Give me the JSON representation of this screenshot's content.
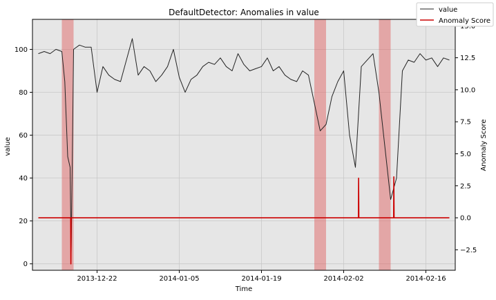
{
  "chart_data": {
    "type": "line",
    "title": "DefaultDetector: Anomalies in value",
    "xlabel": "Time",
    "ylabel": "value",
    "y2label": "Anomaly Score",
    "x_range": [
      "2013-12-11",
      "2014-02-21"
    ],
    "x_ticks": [
      "2013-12-22",
      "2014-01-05",
      "2014-01-19",
      "2014-02-02",
      "2014-02-16"
    ],
    "ylim": [
      -3,
      114
    ],
    "y_ticks": [
      0,
      20,
      40,
      60,
      80,
      100
    ],
    "y2lim": [
      -4.1,
      15.5
    ],
    "y2_ticks": [
      -2.5,
      0.0,
      2.5,
      5.0,
      7.5,
      10.0,
      12.5,
      15.0
    ],
    "y2_tick_labels": [
      "−2.5",
      "0.0",
      "2.5",
      "5.0",
      "7.5",
      "10.0",
      "12.5",
      "15.0"
    ],
    "grid": true,
    "legend_position": "top-right",
    "legend": [
      {
        "label": "value",
        "color": "#222222"
      },
      {
        "label": "Anomaly Score",
        "color": "#cc0000"
      }
    ],
    "anomaly_windows": [
      {
        "start": "2013-12-16",
        "end": "2013-12-18"
      },
      {
        "start": "2014-01-28",
        "end": "2014-01-30"
      },
      {
        "start": "2014-02-08",
        "end": "2014-02-10"
      }
    ],
    "series": [
      {
        "name": "value",
        "axis": "left",
        "color": "#222222",
        "points": [
          [
            "2013-12-12",
            98
          ],
          [
            "2013-12-13",
            99
          ],
          [
            "2013-12-14",
            98
          ],
          [
            "2013-12-15",
            100
          ],
          [
            "2013-12-16",
            99
          ],
          [
            "2013-12-16T12",
            85
          ],
          [
            "2013-12-17",
            50
          ],
          [
            "2013-12-17T10",
            45
          ],
          [
            "2013-12-17T14",
            5
          ],
          [
            "2013-12-17T20",
            60
          ],
          [
            "2013-12-18",
            100
          ],
          [
            "2013-12-19",
            102
          ],
          [
            "2013-12-20",
            101
          ],
          [
            "2013-12-21",
            101
          ],
          [
            "2013-12-22",
            80
          ],
          [
            "2013-12-23",
            92
          ],
          [
            "2013-12-24",
            88
          ],
          [
            "2013-12-25",
            86
          ],
          [
            "2013-12-26",
            85
          ],
          [
            "2013-12-27",
            95
          ],
          [
            "2013-12-28",
            105
          ],
          [
            "2013-12-29",
            88
          ],
          [
            "2013-12-30",
            92
          ],
          [
            "2013-12-31",
            90
          ],
          [
            "2014-01-01",
            85
          ],
          [
            "2014-01-02",
            88
          ],
          [
            "2014-01-03",
            92
          ],
          [
            "2014-01-04",
            100
          ],
          [
            "2014-01-05",
            87
          ],
          [
            "2014-01-06",
            80
          ],
          [
            "2014-01-07",
            86
          ],
          [
            "2014-01-08",
            88
          ],
          [
            "2014-01-09",
            92
          ],
          [
            "2014-01-10",
            94
          ],
          [
            "2014-01-11",
            93
          ],
          [
            "2014-01-12",
            96
          ],
          [
            "2014-01-13",
            92
          ],
          [
            "2014-01-14",
            90
          ],
          [
            "2014-01-15",
            98
          ],
          [
            "2014-01-16",
            93
          ],
          [
            "2014-01-17",
            90
          ],
          [
            "2014-01-18",
            91
          ],
          [
            "2014-01-19",
            92
          ],
          [
            "2014-01-20",
            96
          ],
          [
            "2014-01-21",
            90
          ],
          [
            "2014-01-22",
            92
          ],
          [
            "2014-01-23",
            88
          ],
          [
            "2014-01-24",
            86
          ],
          [
            "2014-01-25",
            85
          ],
          [
            "2014-01-26",
            90
          ],
          [
            "2014-01-27",
            88
          ],
          [
            "2014-01-28",
            75
          ],
          [
            "2014-01-29",
            62
          ],
          [
            "2014-01-30",
            65
          ],
          [
            "2014-01-31",
            78
          ],
          [
            "2014-02-01",
            85
          ],
          [
            "2014-02-02",
            90
          ],
          [
            "2014-02-03",
            60
          ],
          [
            "2014-02-04",
            45
          ],
          [
            "2014-02-05",
            92
          ],
          [
            "2014-02-06",
            95
          ],
          [
            "2014-02-07",
            98
          ],
          [
            "2014-02-08",
            80
          ],
          [
            "2014-02-09",
            55
          ],
          [
            "2014-02-10",
            30
          ],
          [
            "2014-02-11",
            40
          ],
          [
            "2014-02-12",
            90
          ],
          [
            "2014-02-13",
            95
          ],
          [
            "2014-02-14",
            94
          ],
          [
            "2014-02-15",
            98
          ],
          [
            "2014-02-16",
            95
          ],
          [
            "2014-02-17",
            96
          ],
          [
            "2014-02-18",
            92
          ],
          [
            "2014-02-19",
            96
          ],
          [
            "2014-02-20",
            95
          ]
        ]
      },
      {
        "name": "Anomaly Score",
        "axis": "right",
        "color": "#cc0000",
        "points": [
          [
            "2013-12-12",
            0
          ],
          [
            "2013-12-17T12",
            0
          ],
          [
            "2013-12-17T13",
            -3.6
          ],
          [
            "2013-12-17T14",
            0
          ],
          [
            "2014-02-04T12",
            0
          ],
          [
            "2014-02-04T13",
            3.1
          ],
          [
            "2014-02-04T14",
            0
          ],
          [
            "2014-02-10T12",
            0
          ],
          [
            "2014-02-10T13",
            3.2
          ],
          [
            "2014-02-10T14",
            0
          ],
          [
            "2014-02-20",
            0
          ]
        ]
      }
    ]
  }
}
